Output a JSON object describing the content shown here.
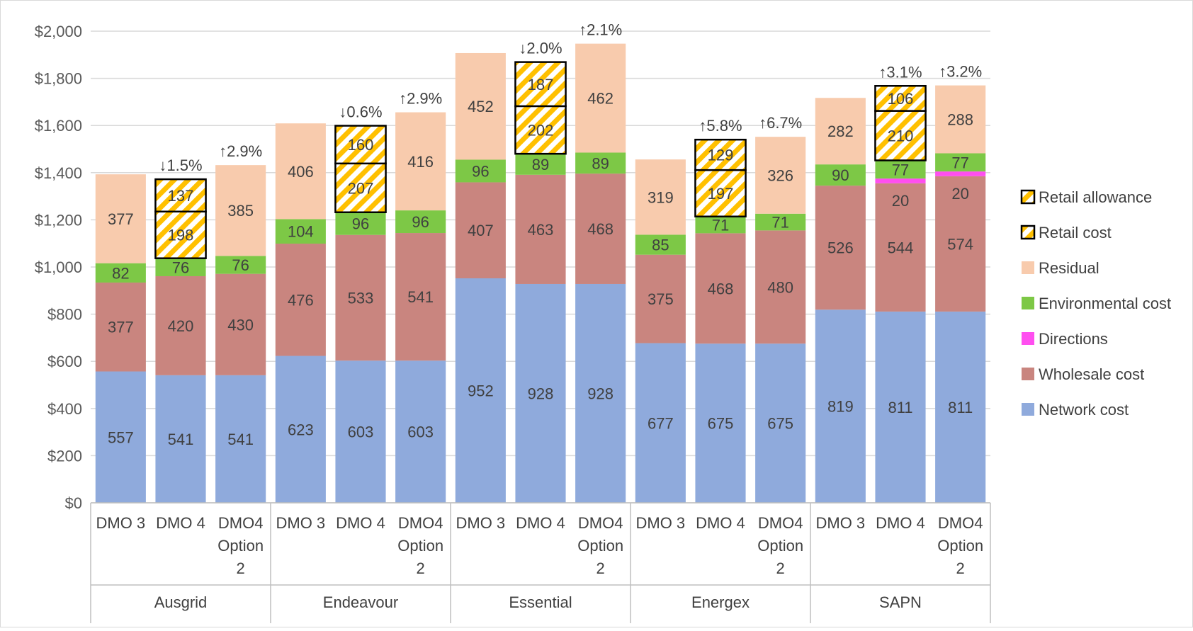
{
  "chart_data": {
    "type": "bar",
    "stacked": true,
    "title": "",
    "xlabel": "",
    "ylabel": "",
    "ylim": [
      0,
      2000
    ],
    "yticks": [
      0,
      200,
      400,
      600,
      800,
      1000,
      1200,
      1400,
      1600,
      1800,
      2000
    ],
    "ytick_labels": [
      "$0",
      "$200",
      "$400",
      "$600",
      "$800",
      "$1,000",
      "$1,200",
      "$1,400",
      "$1,600",
      "$1,800",
      "$2,000"
    ],
    "grid": true,
    "legend_position": "right",
    "groups": [
      {
        "name": "Ausgrid",
        "categories": [
          {
            "label": [
              "DMO 3"
            ],
            "network": 557,
            "wholesale": 377,
            "directions": 0,
            "environmental": 82,
            "residual": 377,
            "retail_cost": 0,
            "retail_allowance": 0,
            "change": ""
          },
          {
            "label": [
              "DMO 4"
            ],
            "network": 541,
            "wholesale": 420,
            "directions": 0,
            "environmental": 76,
            "residual": 0,
            "retail_cost": 198,
            "retail_allowance": 137,
            "change": "↓1.5%"
          },
          {
            "label": [
              "DMO4",
              "Option",
              "2"
            ],
            "network": 541,
            "wholesale": 430,
            "directions": 0,
            "environmental": 76,
            "residual": 385,
            "retail_cost": 0,
            "retail_allowance": 0,
            "change": "↑2.9%"
          }
        ]
      },
      {
        "name": "Endeavour",
        "categories": [
          {
            "label": [
              "DMO 3"
            ],
            "network": 623,
            "wholesale": 476,
            "directions": 0,
            "environmental": 104,
            "residual": 406,
            "retail_cost": 0,
            "retail_allowance": 0,
            "change": ""
          },
          {
            "label": [
              "DMO 4"
            ],
            "network": 603,
            "wholesale": 533,
            "directions": 0,
            "environmental": 96,
            "residual": 0,
            "retail_cost": 207,
            "retail_allowance": 160,
            "change": "↓0.6%"
          },
          {
            "label": [
              "DMO4",
              "Option",
              "2"
            ],
            "network": 603,
            "wholesale": 541,
            "directions": 0,
            "environmental": 96,
            "residual": 416,
            "retail_cost": 0,
            "retail_allowance": 0,
            "change": "↑2.9%"
          }
        ]
      },
      {
        "name": "Essential",
        "categories": [
          {
            "label": [
              "DMO 3"
            ],
            "network": 952,
            "wholesale": 407,
            "directions": 0,
            "environmental": 96,
            "residual": 452,
            "retail_cost": 0,
            "retail_allowance": 0,
            "change": ""
          },
          {
            "label": [
              "DMO 4"
            ],
            "network": 928,
            "wholesale": 463,
            "directions": 0,
            "environmental": 89,
            "residual": 0,
            "retail_cost": 202,
            "retail_allowance": 187,
            "change": "↓2.0%"
          },
          {
            "label": [
              "DMO4",
              "Option",
              "2"
            ],
            "network": 928,
            "wholesale": 468,
            "directions": 0,
            "environmental": 89,
            "residual": 462,
            "retail_cost": 0,
            "retail_allowance": 0,
            "change": "↑2.1%"
          }
        ]
      },
      {
        "name": "Energex",
        "categories": [
          {
            "label": [
              "DMO 3"
            ],
            "network": 677,
            "wholesale": 375,
            "directions": 0,
            "environmental": 85,
            "residual": 319,
            "retail_cost": 0,
            "retail_allowance": 0,
            "change": ""
          },
          {
            "label": [
              "DMO 4"
            ],
            "network": 675,
            "wholesale": 468,
            "directions": 0,
            "environmental": 71,
            "residual": 0,
            "retail_cost": 197,
            "retail_allowance": 129,
            "change": "↑5.8%"
          },
          {
            "label": [
              "DMO4",
              "Option",
              "2"
            ],
            "network": 675,
            "wholesale": 480,
            "directions": 0,
            "environmental": 71,
            "residual": 326,
            "retail_cost": 0,
            "retail_allowance": 0,
            "change": "↑6.7%"
          }
        ]
      },
      {
        "name": "SAPN",
        "categories": [
          {
            "label": [
              "DMO 3"
            ],
            "network": 819,
            "wholesale": 526,
            "directions": 0,
            "environmental": 90,
            "residual": 282,
            "retail_cost": 0,
            "retail_allowance": 0,
            "change": ""
          },
          {
            "label": [
              "DMO 4"
            ],
            "network": 811,
            "wholesale": 544,
            "directions": 20,
            "environmental": 77,
            "residual": 0,
            "retail_cost": 210,
            "retail_allowance": 106,
            "change": "↑3.1%"
          },
          {
            "label": [
              "DMO4",
              "Option",
              "2"
            ],
            "network": 811,
            "wholesale": 574,
            "directions": 20,
            "environmental": 77,
            "residual": 288,
            "retail_cost": 0,
            "retail_allowance": 0,
            "change": "↑3.2%"
          }
        ]
      }
    ],
    "series": [
      {
        "key": "network",
        "name": "Network cost",
        "color": "#8faadc",
        "label_threshold": 0
      },
      {
        "key": "wholesale",
        "name": "Wholesale cost",
        "color": "#c9857f",
        "label_threshold": 0
      },
      {
        "key": "directions",
        "name": "Directions",
        "color": "#ff4ff0",
        "label_threshold": 0
      },
      {
        "key": "environmental",
        "name": "Environmental cost",
        "color": "#7dc846",
        "label_threshold": 0
      },
      {
        "key": "residual",
        "name": "Residual",
        "color": "#f8cbad",
        "label_threshold": 0
      },
      {
        "key": "retail_cost",
        "name": "Retail cost",
        "color": "#ffd23c",
        "hatched": true,
        "outlined": true
      },
      {
        "key": "retail_allowance",
        "name": "Retail allowance",
        "color": "#ffd23c",
        "hatched": true,
        "outlined": true
      }
    ],
    "legend_order": [
      "retail_allowance",
      "retail_cost",
      "residual",
      "environmental",
      "directions",
      "wholesale",
      "network"
    ]
  }
}
